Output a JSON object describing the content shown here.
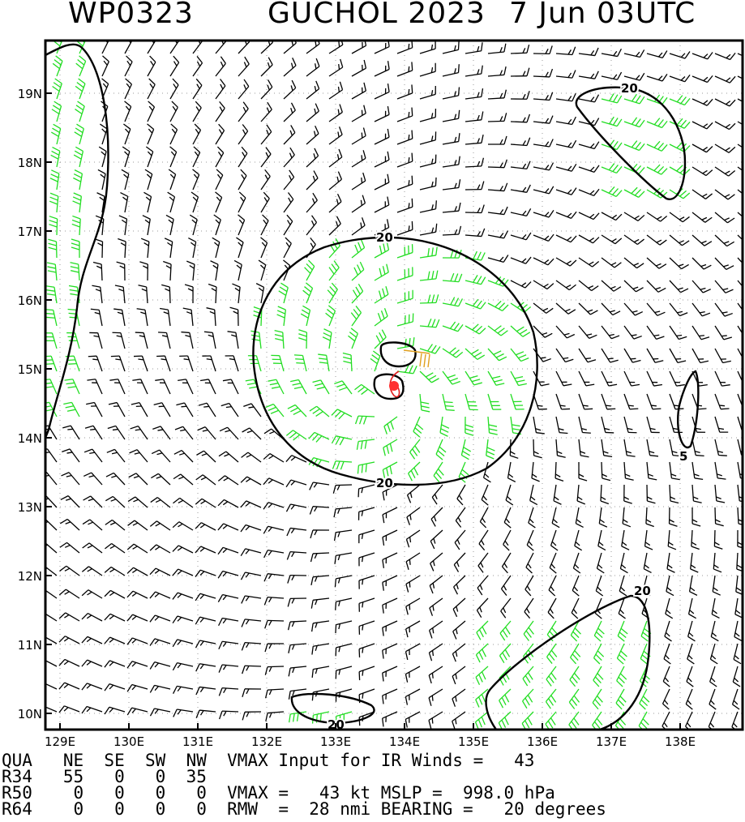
{
  "header": {
    "storm_id": "WP0323",
    "storm_name_year": "GUCHOL 2023",
    "datetime": "7 Jun 03UTC"
  },
  "axes": {
    "lat_labels": [
      "10N",
      "11N",
      "12N",
      "13N",
      "14N",
      "15N",
      "16N",
      "17N",
      "18N",
      "19N"
    ],
    "lat_values": [
      10,
      11,
      12,
      13,
      14,
      15,
      16,
      17,
      18,
      19
    ],
    "lon_labels": [
      "129E",
      "130E",
      "131E",
      "132E",
      "133E",
      "134E",
      "135E",
      "136E",
      "137E",
      "138E"
    ],
    "lon_values": [
      129,
      130,
      131,
      132,
      133,
      134,
      135,
      136,
      137,
      138
    ]
  },
  "contours": {
    "labels": [
      "20",
      "20",
      "20",
      "20",
      "20",
      "5"
    ]
  },
  "center": {
    "lat": 14.77,
    "lon": 133.78
  },
  "colors": {
    "strong_barb": "#22dd22",
    "weak_barb": "#000000",
    "track": "#e02020",
    "center": "#ff3030",
    "shear_vector": "#e0a020"
  },
  "info": {
    "row1": "QUA   NE  SE  SW  NW  VMAX Input for IR Winds =   43",
    "row2": "R34   55   0   0  35",
    "row3": "R50    0   0   0   0  VMAX =   43 kt MSLP =  998.0 hPa",
    "row4": "R64    0   0   0   0  RMW  =  28 nmi BEARING =   20 degrees"
  }
}
